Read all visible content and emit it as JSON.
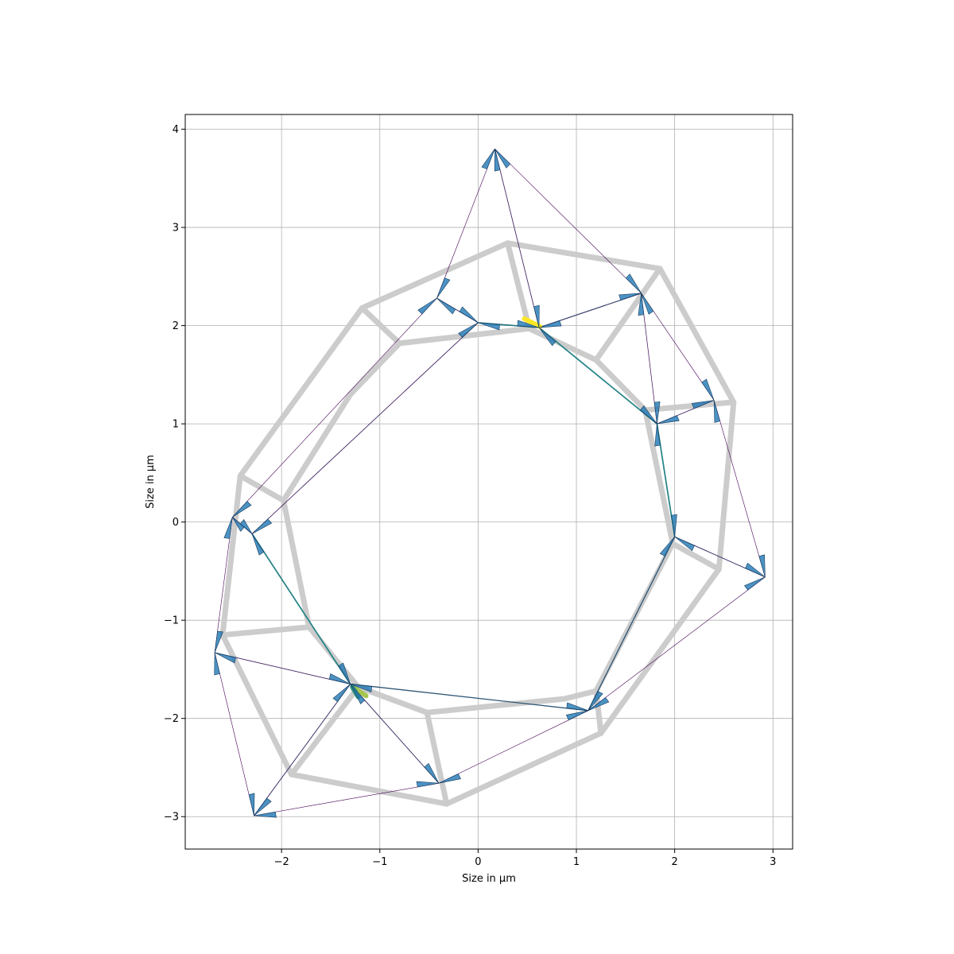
{
  "chart_data": {
    "type": "network",
    "title": "",
    "xlabel": "Size in µm",
    "ylabel": "Size in µm",
    "xlim": [
      -2.98,
      3.2
    ],
    "ylim": [
      -3.33,
      4.15
    ],
    "xticks": [
      -2,
      -1,
      0,
      1,
      2,
      3
    ],
    "xtick_labels": [
      "−2",
      "−1",
      "0",
      "1",
      "2",
      "3"
    ],
    "yticks": [
      -3,
      -2,
      -1,
      0,
      1,
      2,
      3,
      4
    ],
    "ytick_labels": [
      "−3",
      "−2",
      "−1",
      "0",
      "1",
      "2",
      "3",
      "4"
    ],
    "grid": true,
    "colors": {
      "cell_outline": "#cccccc",
      "arrow_fill": "#1f77b4",
      "edge_low": "#440154",
      "edge_mid": "#21918c",
      "edge_high": "#fde725"
    },
    "cell_outlines": [
      [
        [
          0.3,
          2.84
        ],
        [
          1.85,
          2.58
        ],
        [
          2.6,
          1.22
        ],
        [
          2.45,
          -0.48
        ],
        [
          1.25,
          -2.15
        ],
        [
          -0.32,
          -2.87
        ],
        [
          -1.9,
          -2.57
        ],
        [
          -2.6,
          -1.15
        ],
        [
          -2.42,
          0.47
        ],
        [
          -1.18,
          2.18
        ],
        [
          0.3,
          2.84
        ]
      ],
      [
        [
          -0.8,
          1.82
        ],
        [
          0.52,
          1.97
        ],
        [
          1.2,
          1.65
        ],
        [
          1.7,
          1.14
        ],
        [
          1.98,
          -0.22
        ],
        [
          1.2,
          -1.72
        ],
        [
          0.88,
          -1.8
        ],
        [
          -0.52,
          -1.94
        ],
        [
          -1.22,
          -1.68
        ],
        [
          -1.72,
          -1.07
        ],
        [
          -1.98,
          0.22
        ],
        [
          -1.3,
          1.3
        ],
        [
          -0.8,
          1.82
        ]
      ],
      [
        [
          0.3,
          2.84
        ],
        [
          0.52,
          1.97
        ]
      ],
      [
        [
          1.85,
          2.58
        ],
        [
          1.2,
          1.65
        ]
      ],
      [
        [
          2.6,
          1.22
        ],
        [
          1.7,
          1.14
        ]
      ],
      [
        [
          2.45,
          -0.48
        ],
        [
          1.98,
          -0.22
        ]
      ],
      [
        [
          1.25,
          -2.15
        ],
        [
          1.2,
          -1.72
        ]
      ],
      [
        [
          -0.32,
          -2.87
        ],
        [
          -0.52,
          -1.94
        ]
      ],
      [
        [
          -1.9,
          -2.57
        ],
        [
          -1.22,
          -1.68
        ]
      ],
      [
        [
          -2.6,
          -1.15
        ],
        [
          -1.72,
          -1.07
        ]
      ],
      [
        [
          -2.42,
          0.47
        ],
        [
          -1.98,
          0.22
        ]
      ],
      [
        [
          -1.18,
          2.18
        ],
        [
          -0.8,
          1.82
        ]
      ]
    ],
    "nodes": [
      {
        "id": "n1",
        "x": 0.17,
        "y": 3.8
      },
      {
        "id": "n2",
        "x": 0.62,
        "y": 1.98
      },
      {
        "id": "n3",
        "x": 1.66,
        "y": 2.33
      },
      {
        "id": "n4",
        "x": 2.4,
        "y": 1.24
      },
      {
        "id": "n5",
        "x": 1.82,
        "y": 1.0
      },
      {
        "id": "n6",
        "x": 2.0,
        "y": -0.15
      },
      {
        "id": "n7",
        "x": 2.92,
        "y": -0.56
      },
      {
        "id": "n8",
        "x": 1.12,
        "y": -1.92
      },
      {
        "id": "n9",
        "x": -0.4,
        "y": -2.66
      },
      {
        "id": "n10",
        "x": -1.3,
        "y": -1.65
      },
      {
        "id": "n11",
        "x": -2.28,
        "y": -2.99
      },
      {
        "id": "n12",
        "x": -2.68,
        "y": -1.33
      },
      {
        "id": "n13",
        "x": -2.3,
        "y": -0.12
      },
      {
        "id": "n14",
        "x": -2.5,
        "y": 0.05
      },
      {
        "id": "n15",
        "x": 0.0,
        "y": 2.03
      },
      {
        "id": "n16",
        "x": -0.42,
        "y": 2.28
      }
    ],
    "edges": [
      {
        "from": "n1",
        "to": "n2",
        "tension": 0.1
      },
      {
        "from": "n1",
        "to": "n3",
        "tension": 0.0
      },
      {
        "from": "n1",
        "to": "n16",
        "tension": 0.0
      },
      {
        "from": "n2",
        "to": "n3",
        "tension": 0.2
      },
      {
        "from": "n2",
        "to": "n15",
        "tension": 0.4
      },
      {
        "from": "n2",
        "to": "n5",
        "tension": 0.45
      },
      {
        "from": "n3",
        "to": "n5",
        "tension": 0.05
      },
      {
        "from": "n3",
        "to": "n4",
        "tension": 0.0
      },
      {
        "from": "n4",
        "to": "n5",
        "tension": 0.1
      },
      {
        "from": "n4",
        "to": "n7",
        "tension": 0.0
      },
      {
        "from": "n5",
        "to": "n6",
        "tension": 0.45
      },
      {
        "from": "n6",
        "to": "n7",
        "tension": 0.15
      },
      {
        "from": "n6",
        "to": "n8",
        "tension": 0.3
      },
      {
        "from": "n7",
        "to": "n8",
        "tension": 0.0
      },
      {
        "from": "n8",
        "to": "n10",
        "tension": 0.3
      },
      {
        "from": "n8",
        "to": "n9",
        "tension": 0.0
      },
      {
        "from": "n9",
        "to": "n10",
        "tension": 0.15
      },
      {
        "from": "n9",
        "to": "n11",
        "tension": 0.0
      },
      {
        "from": "n10",
        "to": "n11",
        "tension": 0.15
      },
      {
        "from": "n10",
        "to": "n12",
        "tension": 0.1
      },
      {
        "from": "n10",
        "to": "n13",
        "tension": 0.45
      },
      {
        "from": "n11",
        "to": "n12",
        "tension": 0.0
      },
      {
        "from": "n12",
        "to": "n14",
        "tension": 0.0
      },
      {
        "from": "n13",
        "to": "n14",
        "tension": 0.15
      },
      {
        "from": "n13",
        "to": "n15",
        "tension": 0.1
      },
      {
        "from": "n14",
        "to": "n16",
        "tension": 0.0
      },
      {
        "from": "n15",
        "to": "n16",
        "tension": 0.15
      }
    ],
    "hotspots": [
      {
        "x": 0.47,
        "y": 2.07,
        "dx": 0.16,
        "dy": -0.08,
        "tension": 1.0
      },
      {
        "x": -1.14,
        "y": -1.77,
        "dx": -0.12,
        "dy": 0.08,
        "tension": 0.8
      },
      {
        "x": -1.22,
        "y": -1.78,
        "dx": -0.06,
        "dy": 0.1,
        "tension": 0.55
      }
    ],
    "arrow_length": 0.22
  }
}
